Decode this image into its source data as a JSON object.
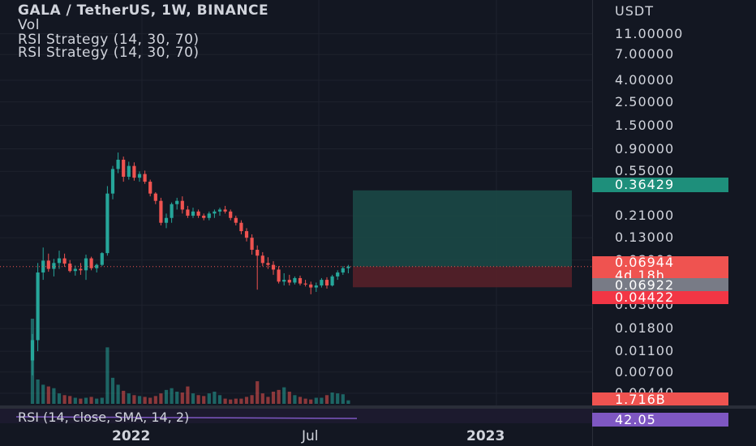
{
  "header": {
    "title": "GALA / TetherUS, 1W, BINANCE",
    "vol_label": "Vol",
    "strategy_1": "RSI Strategy (14, 30, 70)",
    "strategy_2": "RSI Strategy (14, 30, 70)"
  },
  "price_axis": {
    "currency": "USDT",
    "labels": [
      "11.00000",
      "7.00000",
      "4.00000",
      "2.50000",
      "1.50000",
      "0.90000",
      "0.55000",
      "0.21000",
      "0.13000",
      "0.08000",
      "0.03000",
      "0.01800",
      "0.01100",
      "0.00700",
      "0.00440"
    ]
  },
  "price_tags": {
    "tp": "0.36429",
    "last": "0.06944",
    "countdown": "4d 18h",
    "entry": "0.06922",
    "sl": "0.04422",
    "volume": "1.716B",
    "rsi": "42.05"
  },
  "time_axis": {
    "labels": [
      "2022",
      "Jul",
      "2023"
    ]
  },
  "rsi_pane": {
    "label": "RSI (14, close, SMA, 14, 2)"
  },
  "colors": {
    "background": "#131722",
    "up": "#26a69a",
    "down": "#ef5350",
    "tp_zone": "#1b4b48",
    "sl_zone": "#5a2129",
    "grid": "#1e222d",
    "rsi_tag": "#7e57c2"
  },
  "chart_data": {
    "type": "candlestick",
    "title": "GALA / TetherUS, 1W, BINANCE",
    "y_scale": "log",
    "ylim": [
      0.0035,
      14
    ],
    "position_tool": {
      "entry": 0.06922,
      "take_profit": 0.36429,
      "stop_loss": 0.04422
    },
    "series": [
      {
        "o": 0.009,
        "h": 0.016,
        "l": 0.0065,
        "c": 0.014
      },
      {
        "o": 0.014,
        "h": 0.075,
        "l": 0.011,
        "c": 0.061
      },
      {
        "o": 0.061,
        "h": 0.105,
        "l": 0.052,
        "c": 0.079
      },
      {
        "o": 0.079,
        "h": 0.092,
        "l": 0.062,
        "c": 0.066
      },
      {
        "o": 0.066,
        "h": 0.082,
        "l": 0.056,
        "c": 0.075
      },
      {
        "o": 0.075,
        "h": 0.098,
        "l": 0.066,
        "c": 0.083
      },
      {
        "o": 0.083,
        "h": 0.092,
        "l": 0.069,
        "c": 0.074
      },
      {
        "o": 0.074,
        "h": 0.08,
        "l": 0.061,
        "c": 0.063
      },
      {
        "o": 0.063,
        "h": 0.071,
        "l": 0.057,
        "c": 0.066
      },
      {
        "o": 0.066,
        "h": 0.075,
        "l": 0.058,
        "c": 0.064
      },
      {
        "o": 0.064,
        "h": 0.09,
        "l": 0.052,
        "c": 0.083
      },
      {
        "o": 0.083,
        "h": 0.086,
        "l": 0.064,
        "c": 0.067
      },
      {
        "o": 0.067,
        "h": 0.074,
        "l": 0.061,
        "c": 0.072
      },
      {
        "o": 0.072,
        "h": 0.095,
        "l": 0.07,
        "c": 0.093
      },
      {
        "o": 0.093,
        "h": 0.4,
        "l": 0.088,
        "c": 0.34
      },
      {
        "o": 0.34,
        "h": 0.62,
        "l": 0.3,
        "c": 0.58
      },
      {
        "o": 0.58,
        "h": 0.83,
        "l": 0.53,
        "c": 0.71
      },
      {
        "o": 0.71,
        "h": 0.76,
        "l": 0.44,
        "c": 0.49
      },
      {
        "o": 0.49,
        "h": 0.68,
        "l": 0.46,
        "c": 0.62
      },
      {
        "o": 0.62,
        "h": 0.67,
        "l": 0.45,
        "c": 0.48
      },
      {
        "o": 0.48,
        "h": 0.55,
        "l": 0.44,
        "c": 0.52
      },
      {
        "o": 0.52,
        "h": 0.56,
        "l": 0.42,
        "c": 0.44
      },
      {
        "o": 0.44,
        "h": 0.46,
        "l": 0.32,
        "c": 0.34
      },
      {
        "o": 0.34,
        "h": 0.35,
        "l": 0.27,
        "c": 0.29
      },
      {
        "o": 0.29,
        "h": 0.31,
        "l": 0.17,
        "c": 0.18
      },
      {
        "o": 0.18,
        "h": 0.22,
        "l": 0.16,
        "c": 0.2
      },
      {
        "o": 0.2,
        "h": 0.28,
        "l": 0.18,
        "c": 0.27
      },
      {
        "o": 0.27,
        "h": 0.31,
        "l": 0.24,
        "c": 0.29
      },
      {
        "o": 0.29,
        "h": 0.32,
        "l": 0.22,
        "c": 0.24
      },
      {
        "o": 0.24,
        "h": 0.26,
        "l": 0.2,
        "c": 0.21
      },
      {
        "o": 0.21,
        "h": 0.25,
        "l": 0.2,
        "c": 0.23
      },
      {
        "o": 0.23,
        "h": 0.24,
        "l": 0.2,
        "c": 0.21
      },
      {
        "o": 0.21,
        "h": 0.22,
        "l": 0.19,
        "c": 0.2
      },
      {
        "o": 0.2,
        "h": 0.23,
        "l": 0.19,
        "c": 0.22
      },
      {
        "o": 0.22,
        "h": 0.24,
        "l": 0.2,
        "c": 0.23
      },
      {
        "o": 0.23,
        "h": 0.25,
        "l": 0.21,
        "c": 0.24
      },
      {
        "o": 0.24,
        "h": 0.26,
        "l": 0.22,
        "c": 0.23
      },
      {
        "o": 0.23,
        "h": 0.24,
        "l": 0.19,
        "c": 0.2
      },
      {
        "o": 0.2,
        "h": 0.21,
        "l": 0.17,
        "c": 0.18
      },
      {
        "o": 0.18,
        "h": 0.19,
        "l": 0.14,
        "c": 0.15
      },
      {
        "o": 0.15,
        "h": 0.16,
        "l": 0.12,
        "c": 0.13
      },
      {
        "o": 0.13,
        "h": 0.14,
        "l": 0.09,
        "c": 0.1
      },
      {
        "o": 0.1,
        "h": 0.11,
        "l": 0.042,
        "c": 0.088
      },
      {
        "o": 0.088,
        "h": 0.095,
        "l": 0.07,
        "c": 0.075
      },
      {
        "o": 0.075,
        "h": 0.085,
        "l": 0.066,
        "c": 0.072
      },
      {
        "o": 0.072,
        "h": 0.078,
        "l": 0.058,
        "c": 0.065
      },
      {
        "o": 0.065,
        "h": 0.07,
        "l": 0.048,
        "c": 0.05
      },
      {
        "o": 0.05,
        "h": 0.06,
        "l": 0.046,
        "c": 0.052
      },
      {
        "o": 0.052,
        "h": 0.058,
        "l": 0.046,
        "c": 0.049
      },
      {
        "o": 0.049,
        "h": 0.056,
        "l": 0.047,
        "c": 0.054
      },
      {
        "o": 0.054,
        "h": 0.057,
        "l": 0.046,
        "c": 0.048
      },
      {
        "o": 0.048,
        "h": 0.052,
        "l": 0.045,
        "c": 0.047
      },
      {
        "o": 0.047,
        "h": 0.05,
        "l": 0.038,
        "c": 0.044
      },
      {
        "o": 0.044,
        "h": 0.049,
        "l": 0.04,
        "c": 0.046
      },
      {
        "o": 0.046,
        "h": 0.054,
        "l": 0.044,
        "c": 0.052
      },
      {
        "o": 0.052,
        "h": 0.055,
        "l": 0.043,
        "c": 0.046
      },
      {
        "o": 0.046,
        "h": 0.058,
        "l": 0.045,
        "c": 0.056
      },
      {
        "o": 0.056,
        "h": 0.064,
        "l": 0.052,
        "c": 0.061
      },
      {
        "o": 0.061,
        "h": 0.07,
        "l": 0.058,
        "c": 0.067
      },
      {
        "o": 0.067,
        "h": 0.072,
        "l": 0.06,
        "c": 0.06944
      }
    ],
    "volume": [
      0.98,
      0.28,
      0.22,
      0.2,
      0.18,
      0.12,
      0.1,
      0.09,
      0.07,
      0.06,
      0.07,
      0.08,
      0.06,
      0.07,
      0.65,
      0.3,
      0.22,
      0.15,
      0.12,
      0.1,
      0.09,
      0.08,
      0.07,
      0.09,
      0.12,
      0.16,
      0.18,
      0.14,
      0.13,
      0.2,
      0.12,
      0.1,
      0.09,
      0.12,
      0.14,
      0.1,
      0.06,
      0.05,
      0.06,
      0.06,
      0.08,
      0.1,
      0.26,
      0.12,
      0.08,
      0.14,
      0.16,
      0.19,
      0.14,
      0.1,
      0.08,
      0.06,
      0.05,
      0.07,
      0.07,
      0.1,
      0.13,
      0.12,
      0.11,
      0.04
    ]
  }
}
